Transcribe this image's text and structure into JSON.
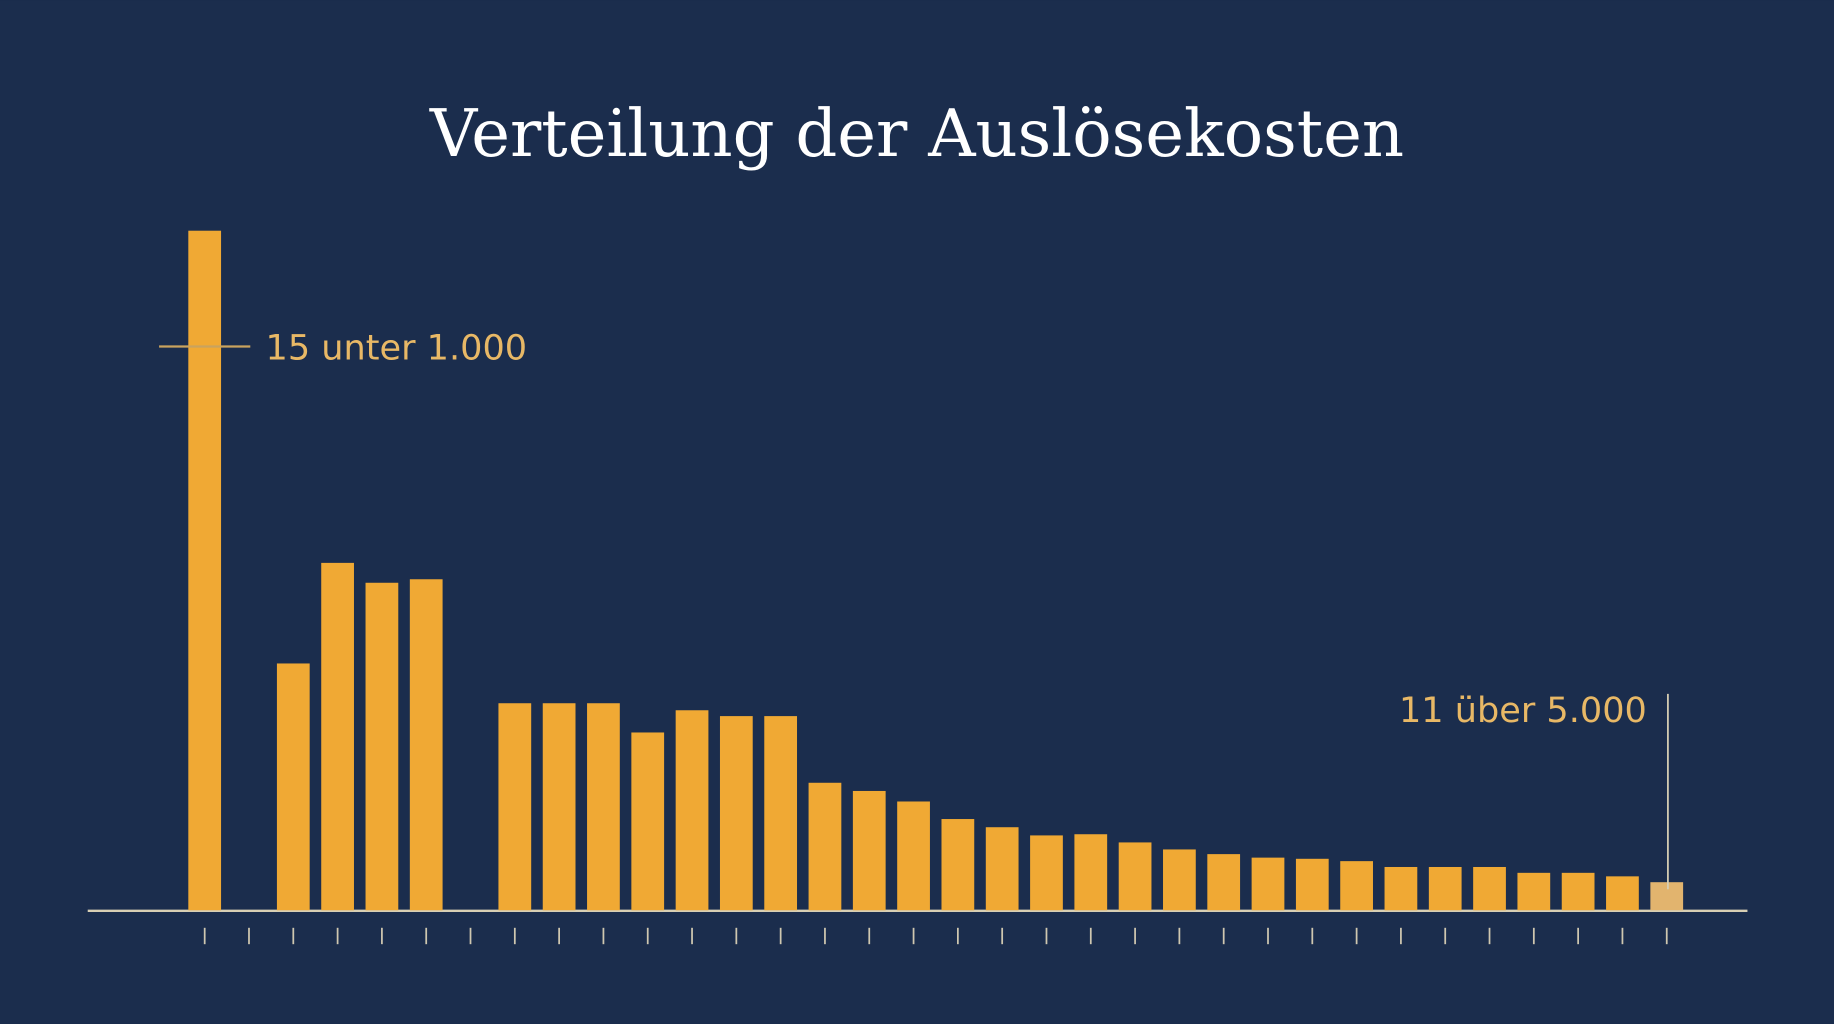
{
  "chart_data": {
    "type": "bar",
    "title": "Verteilung der Auslösekosten",
    "categories": [
      null,
      null,
      null,
      null,
      null,
      null,
      null,
      null,
      null,
      null,
      null,
      null,
      null,
      null,
      null,
      null,
      null,
      null,
      null,
      null,
      null,
      null,
      null,
      null,
      null,
      null,
      null,
      null,
      null,
      null,
      null,
      null,
      null,
      null
    ],
    "values": [
      581,
      0,
      211,
      297,
      280,
      283,
      0,
      177,
      177,
      177,
      152,
      171,
      166,
      166,
      109,
      102,
      93,
      78,
      71,
      64,
      65,
      58,
      52,
      48,
      45,
      44,
      42,
      37,
      37,
      37,
      32,
      32,
      29,
      24
    ],
    "color": "#f0a934",
    "colors": [
      "#f0a934",
      "#f0a934",
      "#f0a934",
      "#f0a934",
      "#f0a934",
      "#f0a934",
      "#f0a934",
      "#f0a934",
      "#f0a934",
      "#f0a934",
      "#f0a934",
      "#f0a934",
      "#f0a934",
      "#f0a934",
      "#f0a934",
      "#f0a934",
      "#f0a934",
      "#f0a934",
      "#f0a934",
      "#f0a934",
      "#f0a934",
      "#f0a934",
      "#f0a934",
      "#f0a934",
      "#f0a934",
      "#f0a934",
      "#f0a934",
      "#f0a934",
      "#f0a934",
      "#f0a934",
      "#f0a934",
      "#f0a934",
      "#f0a934",
      "#e2b46e"
    ],
    "ylim": [
      0,
      600
    ],
    "annotations": [
      {
        "text": "15 unter 1.000",
        "index": 0
      },
      {
        "text": "11 über 5.000",
        "index": 33
      }
    ]
  }
}
